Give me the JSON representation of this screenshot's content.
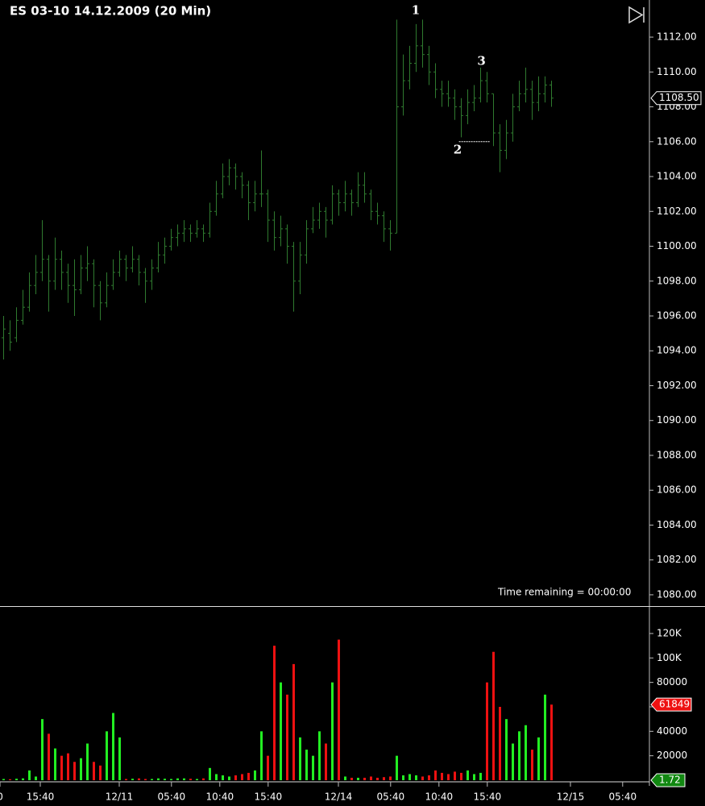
{
  "chart_data": [
    {
      "type": "ohlc",
      "title": "ES 03-10 14.12.2009 (20 Min)",
      "color": "#2f7a2f",
      "xlim": [
        -0.5,
        100.25
      ],
      "ylim": [
        1079.35,
        1114.13
      ],
      "yticks": [
        {
          "value": 1080,
          "label": "1080.00"
        },
        {
          "value": 1082,
          "label": "1082.00"
        },
        {
          "value": 1084,
          "label": "1084.00"
        },
        {
          "value": 1086,
          "label": "1086.00"
        },
        {
          "value": 1088,
          "label": "1088.00"
        },
        {
          "value": 1090,
          "label": "1090.00"
        },
        {
          "value": 1092,
          "label": "1092.00"
        },
        {
          "value": 1094,
          "label": "1094.00"
        },
        {
          "value": 1096,
          "label": "1096.00"
        },
        {
          "value": 1098,
          "label": "1098.00"
        },
        {
          "value": 1100,
          "label": "1100.00"
        },
        {
          "value": 1102,
          "label": "1102.00"
        },
        {
          "value": 1104,
          "label": "1104.00"
        },
        {
          "value": 1106,
          "label": "1106.00"
        },
        {
          "value": 1108,
          "label": "1108.00"
        },
        {
          "value": 1110,
          "label": "1110.00"
        },
        {
          "value": 1112,
          "label": "1112.00"
        }
      ],
      "ohlc": [
        [
          1094.75,
          1096,
          1093.5,
          1095.25
        ],
        [
          1095,
          1095.75,
          1094,
          1094.5
        ],
        [
          1094.75,
          1096.5,
          1094.5,
          1095.75
        ],
        [
          1095.75,
          1097.5,
          1095.5,
          1096.5
        ],
        [
          1096.5,
          1098.5,
          1096.25,
          1097.75
        ],
        [
          1097.75,
          1099.5,
          1097.25,
          1098.5
        ],
        [
          1098.5,
          1101.5,
          1098,
          1099.25
        ],
        [
          1099.25,
          1099.5,
          1096.25,
          1098
        ],
        [
          1098,
          1100.5,
          1097.5,
          1099.25
        ],
        [
          1099.25,
          1099.75,
          1097.5,
          1098.5
        ],
        [
          1098.5,
          1099,
          1096.75,
          1097.75
        ],
        [
          1097.75,
          1099.25,
          1096,
          1097.5
        ],
        [
          1097.5,
          1099.5,
          1097.25,
          1098.75
        ],
        [
          1098.75,
          1100,
          1098,
          1099
        ],
        [
          1099,
          1099.25,
          1096.5,
          1097.75
        ],
        [
          1097.75,
          1098,
          1095.75,
          1096.75
        ],
        [
          1096.75,
          1098.5,
          1096.5,
          1097.75
        ],
        [
          1097.75,
          1099.25,
          1097.5,
          1098.5
        ],
        [
          1098.5,
          1099.75,
          1098.25,
          1099.25
        ],
        [
          1099.25,
          1099.5,
          1098,
          1098.75
        ],
        [
          1098.75,
          1100,
          1098.5,
          1099.25
        ],
        [
          1099.25,
          1099.5,
          1097.75,
          1098.5
        ],
        [
          1098.5,
          1098.75,
          1096.75,
          1098
        ],
        [
          1098,
          1099.25,
          1097.5,
          1098.75
        ],
        [
          1098.75,
          1100.25,
          1098.5,
          1099.5
        ],
        [
          1099.5,
          1100.5,
          1099,
          1100
        ],
        [
          1100,
          1101,
          1099.75,
          1100.5
        ],
        [
          1100.5,
          1101.25,
          1100,
          1100.75
        ],
        [
          1100.75,
          1101.5,
          1100.25,
          1101
        ],
        [
          1101,
          1101.25,
          1100.25,
          1100.75
        ],
        [
          1100.75,
          1101.5,
          1100.5,
          1101
        ],
        [
          1101,
          1101.25,
          1100.25,
          1100.75
        ],
        [
          1100.75,
          1102.5,
          1100.5,
          1102
        ],
        [
          1102,
          1103.75,
          1101.75,
          1103
        ],
        [
          1103,
          1104.75,
          1102.75,
          1104
        ],
        [
          1104,
          1105,
          1103.5,
          1104.5
        ],
        [
          1104.5,
          1104.75,
          1103.25,
          1104
        ],
        [
          1104,
          1104.25,
          1102.75,
          1103.5
        ],
        [
          1103.5,
          1103.75,
          1101.5,
          1102.5
        ],
        [
          1102.5,
          1103.75,
          1102,
          1103
        ],
        [
          1103,
          1105.5,
          1102.25,
          1103
        ],
        [
          1103,
          1103.25,
          1100.25,
          1101.5
        ],
        [
          1101.5,
          1102,
          1099.75,
          1100.5
        ],
        [
          1100.5,
          1101.75,
          1100,
          1101
        ],
        [
          1101,
          1101.25,
          1099,
          1100
        ],
        [
          1100,
          1100.25,
          1096.25,
          1098
        ],
        [
          1098,
          1100.25,
          1097.25,
          1099.5
        ],
        [
          1099.5,
          1101.5,
          1099,
          1101
        ],
        [
          1101,
          1102.25,
          1100.75,
          1101.5
        ],
        [
          1101.5,
          1102.5,
          1101,
          1102
        ],
        [
          1102,
          1102.25,
          1100.5,
          1101.5
        ],
        [
          1101.5,
          1103.5,
          1101.25,
          1103
        ],
        [
          1103,
          1103.25,
          1101.75,
          1102.5
        ],
        [
          1102.5,
          1103.75,
          1102,
          1103
        ],
        [
          1103,
          1103.25,
          1101.75,
          1102.5
        ],
        [
          1102.5,
          1104.25,
          1102.25,
          1103.5
        ],
        [
          1103.5,
          1104.25,
          1102.5,
          1103
        ],
        [
          1103,
          1103.25,
          1101.5,
          1102
        ],
        [
          1102,
          1102.5,
          1101.25,
          1101.75
        ],
        [
          1101.75,
          1102,
          1100.25,
          1101
        ],
        [
          1101,
          1101.5,
          1099.75,
          1100.75
        ],
        [
          1100.75,
          1113,
          1100.75,
          1108
        ],
        [
          1108,
          1111,
          1107.5,
          1109.5
        ],
        [
          1109.5,
          1111.5,
          1109,
          1110.5
        ],
        [
          1110.5,
          1112.75,
          1110,
          1111.5
        ],
        [
          1111.5,
          1113,
          1110.25,
          1111
        ],
        [
          1111,
          1111.5,
          1109.25,
          1110
        ],
        [
          1110,
          1110.5,
          1108.5,
          1109
        ],
        [
          1109,
          1109.5,
          1108,
          1108.75
        ],
        [
          1108.75,
          1109.5,
          1108,
          1108.5
        ],
        [
          1108.5,
          1109,
          1107.25,
          1108
        ],
        [
          1108,
          1108.5,
          1106.25,
          1107.5
        ],
        [
          1107.5,
          1109,
          1107,
          1108.25
        ],
        [
          1108.25,
          1109.25,
          1107.75,
          1108.5
        ],
        [
          1108.5,
          1110.25,
          1108.25,
          1109.5
        ],
        [
          1109.5,
          1110,
          1108.25,
          1108.75
        ],
        [
          1108.75,
          1108.75,
          1105.75,
          1106.5
        ],
        [
          1106.5,
          1107,
          1104.25,
          1105.5
        ],
        [
          1105.5,
          1107.25,
          1105,
          1106.5
        ],
        [
          1106.5,
          1108.75,
          1106,
          1108
        ],
        [
          1108,
          1109.5,
          1107.75,
          1108.75
        ],
        [
          1108.75,
          1110.25,
          1108.25,
          1109
        ],
        [
          1109,
          1109.5,
          1107.25,
          1108.25
        ],
        [
          1108.25,
          1109.75,
          1107.75,
          1108.75
        ],
        [
          1108.75,
          1109.75,
          1108.25,
          1109.25
        ],
        [
          1109.25,
          1109.5,
          1108,
          1108.5
        ]
      ],
      "annotations": [
        {
          "text": "1",
          "x": 64,
          "y": 1113.5
        },
        {
          "text": "2",
          "x": 70.5,
          "y": 1105.5
        },
        {
          "text": "3",
          "x": 74.2,
          "y": 1110.6
        }
      ],
      "level_line": {
        "value": 1106,
        "from": 70.7,
        "to": 75.5
      },
      "last_price": {
        "value": 1108.5,
        "label": "1108.50"
      },
      "status": "Time remaining = 00:00:00"
    },
    {
      "type": "volume",
      "up_color": "#22ee22",
      "down_color": "#ee1111",
      "xlim": [
        -0.5,
        100.25
      ],
      "ylim": [
        0,
        142400
      ],
      "yticks": [
        20000,
        40000,
        60000,
        80000,
        {
          "value": 100000,
          "label": "100K"
        },
        {
          "value": 120000,
          "label": "120K"
        }
      ],
      "xticks": [
        {
          "value": -0.5,
          "label": "0"
        },
        {
          "value": 5.75,
          "label": "15:40"
        },
        {
          "value": 18,
          "label": "12/11"
        },
        {
          "value": 26.1,
          "label": "05:40"
        },
        {
          "value": 33.6,
          "label": "10:40"
        },
        {
          "value": 41.1,
          "label": "15:40"
        },
        {
          "value": 52,
          "label": "12/14"
        },
        {
          "value": 60.1,
          "label": "05:40"
        },
        {
          "value": 67.6,
          "label": "10:40"
        },
        {
          "value": 75.1,
          "label": "15:40"
        },
        {
          "value": 88,
          "label": "12/15"
        },
        {
          "value": 96.1,
          "label": "05:40"
        }
      ],
      "values": [
        1000,
        800,
        1200,
        1500,
        8000,
        3000,
        50000,
        38000,
        26000,
        20000,
        22000,
        15000,
        18000,
        30000,
        15000,
        12000,
        40000,
        55000,
        35000,
        1000,
        1200,
        1500,
        1000,
        1000,
        1500,
        1200,
        1000,
        1500,
        1500,
        1200,
        1000,
        1500,
        10000,
        5000,
        4000,
        3000,
        4000,
        5000,
        6000,
        8000,
        40000,
        20000,
        110000,
        80000,
        70000,
        95000,
        35000,
        25000,
        20000,
        40000,
        30000,
        80000,
        115000,
        3000,
        2000,
        2000,
        2000,
        3000,
        2000,
        2500,
        3000,
        20000,
        4000,
        5000,
        4000,
        3000,
        4000,
        8000,
        6000,
        5000,
        7000,
        6000,
        8000,
        5000,
        6000,
        80000,
        105000,
        60000,
        50000,
        30000,
        40000,
        45000,
        25000,
        35000,
        70000,
        61849
      ],
      "last_value": 61849,
      "indicator_value": 1.72
    }
  ]
}
